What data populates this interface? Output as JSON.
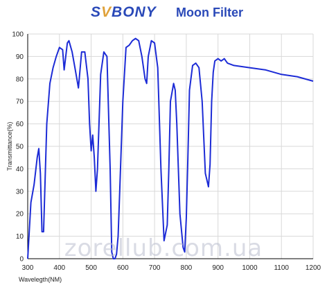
{
  "header": {
    "brand": "SVBONY",
    "title": "Moon Filter"
  },
  "colors": {
    "brand_blue": "#2a49b8",
    "brand_v": "#e0a23a",
    "curve": "#1c2bd6",
    "axis": "#000000",
    "grid": "#d8d8d8"
  },
  "watermark": "zorellub.com.ua",
  "chart_data": {
    "type": "line",
    "title": "Moon Filter",
    "xlabel": "Wavelegth(NM)",
    "ylabel": "Transmittance(%)",
    "xlim": [
      300,
      1200
    ],
    "ylim": [
      0,
      100
    ],
    "xticks": [
      300,
      400,
      500,
      600,
      700,
      800,
      900,
      1000,
      1100,
      1200
    ],
    "yticks": [
      0,
      10,
      20,
      30,
      40,
      50,
      60,
      70,
      80,
      90,
      100
    ],
    "grid": true,
    "series": [
      {
        "x": [
          300,
          310,
          320,
          330,
          335,
          340,
          345,
          350,
          360,
          370,
          380,
          390,
          400,
          410,
          415,
          420,
          425,
          430,
          440,
          450,
          460,
          465,
          470,
          480,
          490,
          495,
          500,
          505,
          510,
          515,
          520,
          530,
          540,
          550,
          560,
          565,
          570,
          575,
          580,
          585,
          590,
          600,
          610,
          620,
          630,
          640,
          650,
          660,
          670,
          675,
          680,
          690,
          700,
          710,
          720,
          730,
          740,
          745,
          750,
          760,
          765,
          770,
          780,
          790,
          795,
          800,
          805,
          810,
          820,
          830,
          840,
          850,
          860,
          870,
          875,
          880,
          885,
          890,
          900,
          910,
          920,
          925,
          930,
          950,
          1000,
          1050,
          1100,
          1150,
          1200
        ],
        "y": [
          0,
          25,
          33,
          45,
          49,
          38,
          12,
          12,
          60,
          78,
          85,
          90,
          94,
          93,
          84,
          90,
          96,
          97,
          92,
          84,
          76,
          84,
          92,
          92,
          80,
          60,
          48,
          55,
          45,
          30,
          40,
          82,
          92,
          90,
          40,
          3,
          0,
          0,
          2,
          10,
          30,
          70,
          94,
          95,
          97,
          98,
          97,
          90,
          80,
          78,
          90,
          97,
          96,
          85,
          40,
          8,
          15,
          40,
          70,
          78,
          75,
          60,
          20,
          5,
          3,
          18,
          45,
          75,
          86,
          87,
          85,
          70,
          38,
          32,
          42,
          70,
          83,
          88,
          89,
          88,
          89,
          88,
          87,
          86,
          85,
          84,
          82,
          81,
          79
        ]
      }
    ]
  }
}
